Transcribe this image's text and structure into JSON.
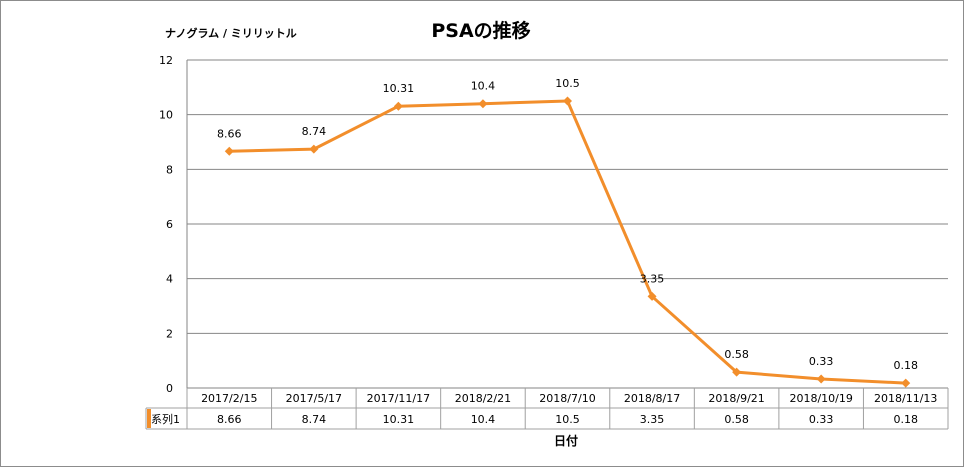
{
  "chart_data": {
    "type": "line",
    "title": "PSAの推移",
    "ylabel": "ナノグラム / ミリリットル",
    "xlabel": "日付",
    "categories": [
      "2017/2/15",
      "2017/5/17",
      "2017/11/17",
      "2018/2/21",
      "2018/7/10",
      "2018/8/17",
      "2018/9/21",
      "2018/10/19",
      "2018/11/13"
    ],
    "series": [
      {
        "name": "系列1",
        "values": [
          8.66,
          8.74,
          10.31,
          10.4,
          10.5,
          3.35,
          0.58,
          0.33,
          0.18
        ],
        "labels": [
          "8.66",
          "8.74",
          "10.31",
          "10.4",
          "10.5",
          "3.35",
          "0.58",
          "0.33",
          "0.18"
        ],
        "color": "#f28e2b"
      }
    ],
    "ylim": [
      0,
      12
    ],
    "yticks": [
      0,
      2,
      4,
      6,
      8,
      10,
      12
    ],
    "grid": true,
    "data_table": true,
    "colors": {
      "gridline": "#868686",
      "axis": "#868686",
      "table_border": "#a0a0a0",
      "legend_key": "#f28e2b"
    }
  }
}
